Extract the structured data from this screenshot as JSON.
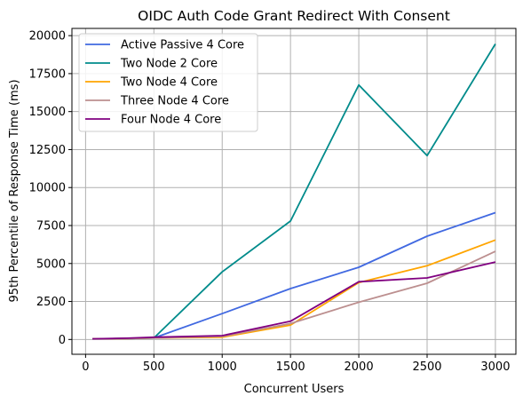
{
  "chart_data": {
    "type": "line",
    "title": "OIDC Auth Code Grant Redirect With Consent",
    "xlabel": "Concurrent Users",
    "ylabel": "95th Percentile of Response Time (ms)",
    "xlim": [
      -100,
      3150
    ],
    "ylim": [
      -975,
      20475
    ],
    "x_ticks": [
      0,
      500,
      1000,
      1500,
      2000,
      2500,
      3000
    ],
    "x_tick_labels": [
      "0",
      "500",
      "1000",
      "1500",
      "2000",
      "2500",
      "3000"
    ],
    "y_ticks": [
      0,
      2500,
      5000,
      7500,
      10000,
      12500,
      15000,
      17500,
      20000
    ],
    "y_tick_labels": [
      "0",
      "2500",
      "5000",
      "7500",
      "10000",
      "12500",
      "15000",
      "17500",
      "20000"
    ],
    "grid": true,
    "legend_position": "top-left",
    "x": [
      50,
      300,
      500,
      1000,
      1500,
      2000,
      2500,
      3000
    ],
    "series": [
      {
        "name": "Active Passive 4 Core",
        "color": "#4169e1",
        "values": [
          40,
          60,
          100,
          1700,
          3350,
          4750,
          6800,
          8350
        ]
      },
      {
        "name": "Two Node 2 Core",
        "color": "#008b8b",
        "values": [
          40,
          60,
          100,
          4450,
          7800,
          16750,
          12100,
          19450
        ]
      },
      {
        "name": "Two Node 4 Core",
        "color": "#ffa500",
        "values": [
          40,
          60,
          100,
          150,
          950,
          3750,
          4850,
          6550
        ]
      },
      {
        "name": "Three Node 4 Core",
        "color": "#bc8f8f",
        "values": [
          40,
          60,
          100,
          200,
          1050,
          2450,
          3700,
          5800
        ]
      },
      {
        "name": "Four Node 4 Core",
        "color": "#800080",
        "values": [
          40,
          80,
          150,
          250,
          1200,
          3800,
          4050,
          5100
        ]
      }
    ]
  }
}
